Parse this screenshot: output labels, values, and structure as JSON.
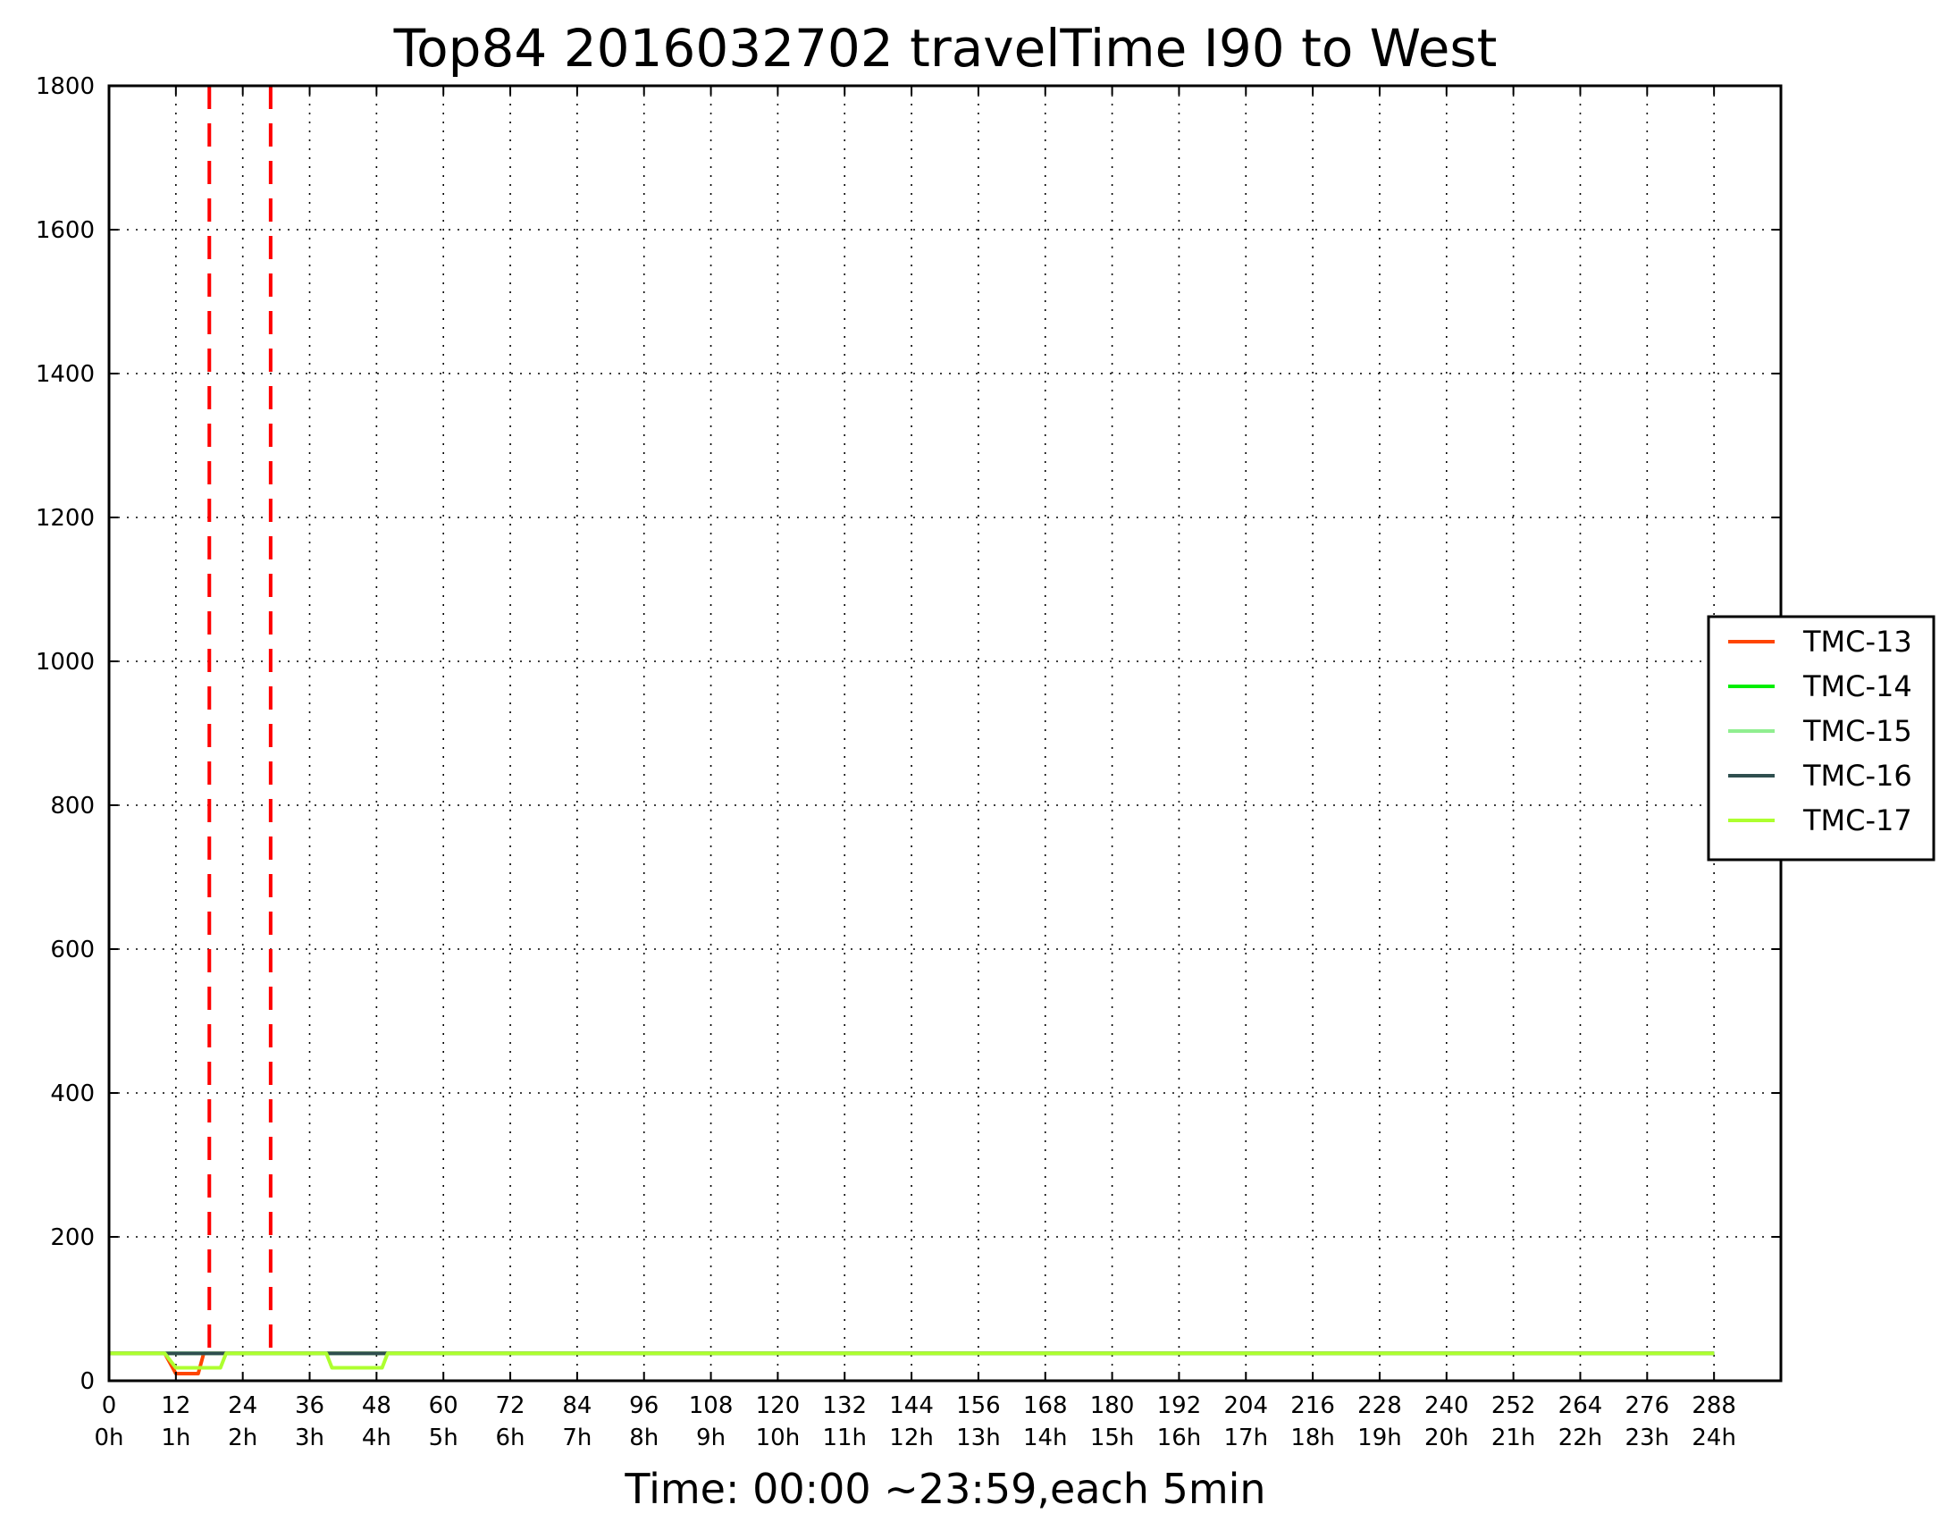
{
  "chart_data": {
    "type": "line",
    "title": "Top84 2016032702 travelTime I90 to West",
    "xlabel": "Time: 00:00 ~23:59,each 5min",
    "ylabel": "",
    "xlim": [
      0,
      300
    ],
    "ylim": [
      0,
      1800
    ],
    "grid": true,
    "legend_position": "center-right",
    "x_ticks": [
      0,
      12,
      24,
      36,
      48,
      60,
      72,
      84,
      96,
      108,
      120,
      132,
      144,
      156,
      168,
      180,
      192,
      204,
      216,
      228,
      240,
      252,
      264,
      276,
      288
    ],
    "x_ticks_hours": [
      "0h",
      "1h",
      "2h",
      "3h",
      "4h",
      "5h",
      "6h",
      "7h",
      "8h",
      "9h",
      "10h",
      "11h",
      "12h",
      "13h",
      "14h",
      "15h",
      "16h",
      "17h",
      "18h",
      "19h",
      "20h",
      "21h",
      "22h",
      "23h",
      "24h"
    ],
    "y_ticks": [
      0,
      200,
      400,
      600,
      800,
      1000,
      1200,
      1400,
      1600,
      1800
    ],
    "vlines": [
      {
        "x": 18,
        "color": "#ff0000",
        "style": "dashed"
      },
      {
        "x": 29,
        "color": "#ff0000",
        "style": "dashed"
      }
    ],
    "series": [
      {
        "name": "TMC-13",
        "color": "#ff4500",
        "points": [
          [
            0,
            38
          ],
          [
            10,
            38
          ],
          [
            12,
            10
          ],
          [
            16,
            10
          ],
          [
            17,
            38
          ],
          [
            288,
            38
          ]
        ]
      },
      {
        "name": "TMC-14",
        "color": "#00ee00",
        "points": [
          [
            0,
            38
          ],
          [
            288,
            38
          ]
        ]
      },
      {
        "name": "TMC-15",
        "color": "#90ee90",
        "points": [
          [
            0,
            38
          ],
          [
            288,
            38
          ]
        ]
      },
      {
        "name": "TMC-16",
        "color": "#2f4f4f",
        "points": [
          [
            0,
            38
          ],
          [
            10,
            38
          ],
          [
            11,
            38
          ],
          [
            20,
            38
          ],
          [
            39,
            38
          ],
          [
            49,
            38
          ],
          [
            288,
            38
          ]
        ]
      },
      {
        "name": "TMC-17",
        "color": "#adff2f",
        "points": [
          [
            0,
            38
          ],
          [
            10,
            38
          ],
          [
            12,
            18
          ],
          [
            20,
            18
          ],
          [
            21,
            38
          ],
          [
            39,
            38
          ],
          [
            40,
            18
          ],
          [
            49,
            18
          ],
          [
            50,
            38
          ],
          [
            288,
            38
          ]
        ]
      }
    ]
  }
}
